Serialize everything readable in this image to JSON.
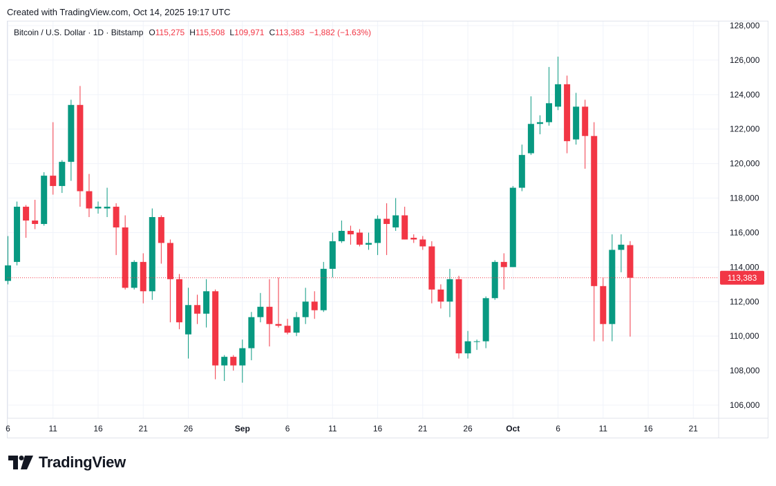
{
  "header": {
    "created_text": "Created with TradingView.com, Oct 14, 2025 19:17 UTC"
  },
  "legend": {
    "symbol": "Bitcoin / U.S. Dollar · 1D · Bitstamp",
    "open_key": "O",
    "open": "115,275",
    "high_key": "H",
    "high": "115,508",
    "low_key": "L",
    "low": "109,971",
    "close_key": "C",
    "close": "113,383",
    "change": "−1,882 (−1.63%)"
  },
  "brand": {
    "logo_text": "TradingView"
  },
  "colors": {
    "up": "#089981",
    "down": "#f23645",
    "grid": "#f0f3fa",
    "text": "#131722"
  },
  "chart_data": {
    "type": "candlestick",
    "title": "Bitcoin / U.S. Dollar · 1D · Bitstamp",
    "y_ticks": [
      106000,
      108000,
      110000,
      112000,
      114000,
      116000,
      118000,
      120000,
      122000,
      124000,
      126000,
      128000
    ],
    "y_tick_labels": [
      "106,000",
      "108,000",
      "110,000",
      "112,000",
      "114,000",
      "116,000",
      "118,000",
      "120,000",
      "122,000",
      "124,000",
      "126,000",
      "128,000"
    ],
    "ylim": [
      104800,
      128800
    ],
    "x_ticks": [
      {
        "day": 0,
        "label": "6"
      },
      {
        "day": 5,
        "label": "11"
      },
      {
        "day": 10,
        "label": "16"
      },
      {
        "day": 15,
        "label": "21"
      },
      {
        "day": 20,
        "label": "26"
      },
      {
        "day": 26,
        "label": "Sep",
        "bold": true
      },
      {
        "day": 31,
        "label": "6"
      },
      {
        "day": 36,
        "label": "11"
      },
      {
        "day": 41,
        "label": "16"
      },
      {
        "day": 46,
        "label": "21"
      },
      {
        "day": 51,
        "label": "26"
      },
      {
        "day": 56,
        "label": "Oct",
        "bold": true
      },
      {
        "day": 61,
        "label": "6"
      },
      {
        "day": 66,
        "label": "11"
      },
      {
        "day": 71,
        "label": "16"
      },
      {
        "day": 76,
        "label": "21"
      }
    ],
    "last_price": 113383,
    "last_price_label": "113,383",
    "candles": [
      {
        "o": 113200,
        "h": 115800,
        "l": 113000,
        "c": 114100
      },
      {
        "o": 114300,
        "h": 117800,
        "l": 114100,
        "c": 117500
      },
      {
        "o": 117500,
        "h": 117600,
        "l": 115700,
        "c": 116700
      },
      {
        "o": 116700,
        "h": 117900,
        "l": 116200,
        "c": 116500
      },
      {
        "o": 116500,
        "h": 119500,
        "l": 116400,
        "c": 119300
      },
      {
        "o": 119300,
        "h": 122400,
        "l": 118200,
        "c": 118700
      },
      {
        "o": 118700,
        "h": 120200,
        "l": 118300,
        "c": 120100
      },
      {
        "o": 120100,
        "h": 123700,
        "l": 119000,
        "c": 123400
      },
      {
        "o": 123400,
        "h": 124500,
        "l": 117500,
        "c": 118400
      },
      {
        "o": 118400,
        "h": 119400,
        "l": 116900,
        "c": 117400
      },
      {
        "o": 117400,
        "h": 117800,
        "l": 117100,
        "c": 117500
      },
      {
        "o": 117400,
        "h": 118600,
        "l": 116900,
        "c": 117500
      },
      {
        "o": 117500,
        "h": 117700,
        "l": 114700,
        "c": 116300
      },
      {
        "o": 116300,
        "h": 117000,
        "l": 112700,
        "c": 112800
      },
      {
        "o": 112800,
        "h": 114400,
        "l": 112700,
        "c": 114300
      },
      {
        "o": 114300,
        "h": 114800,
        "l": 111900,
        "c": 112600
      },
      {
        "o": 112600,
        "h": 117400,
        "l": 112100,
        "c": 116900
      },
      {
        "o": 116900,
        "h": 117000,
        "l": 114200,
        "c": 115400
      },
      {
        "o": 115400,
        "h": 115600,
        "l": 110800,
        "c": 113300
      },
      {
        "o": 113300,
        "h": 113600,
        "l": 110400,
        "c": 110800
      },
      {
        "o": 110100,
        "h": 112800,
        "l": 108700,
        "c": 111800
      },
      {
        "o": 111800,
        "h": 112400,
        "l": 110700,
        "c": 111300
      },
      {
        "o": 111300,
        "h": 113300,
        "l": 110500,
        "c": 112600
      },
      {
        "o": 112600,
        "h": 112700,
        "l": 107500,
        "c": 108300
      },
      {
        "o": 108300,
        "h": 108900,
        "l": 107400,
        "c": 108800
      },
      {
        "o": 108800,
        "h": 108900,
        "l": 108000,
        "c": 108300
      },
      {
        "o": 108300,
        "h": 109800,
        "l": 107300,
        "c": 109300
      },
      {
        "o": 109300,
        "h": 111400,
        "l": 108600,
        "c": 111100
      },
      {
        "o": 111100,
        "h": 112500,
        "l": 110800,
        "c": 111700
      },
      {
        "o": 111700,
        "h": 113300,
        "l": 109400,
        "c": 110700
      },
      {
        "o": 110700,
        "h": 113400,
        "l": 110500,
        "c": 110600
      },
      {
        "o": 110600,
        "h": 111000,
        "l": 110100,
        "c": 110200
      },
      {
        "o": 110200,
        "h": 111400,
        "l": 110000,
        "c": 111100
      },
      {
        "o": 111100,
        "h": 112800,
        "l": 110700,
        "c": 112000
      },
      {
        "o": 112000,
        "h": 112600,
        "l": 111000,
        "c": 111500
      },
      {
        "o": 111500,
        "h": 114300,
        "l": 111400,
        "c": 113900
      },
      {
        "o": 113900,
        "h": 116000,
        "l": 113400,
        "c": 115500
      },
      {
        "o": 115500,
        "h": 116700,
        "l": 115400,
        "c": 116100
      },
      {
        "o": 116100,
        "h": 116400,
        "l": 115300,
        "c": 115900
      },
      {
        "o": 116000,
        "h": 116200,
        "l": 115200,
        "c": 115300
      },
      {
        "o": 115300,
        "h": 116000,
        "l": 115000,
        "c": 115400
      },
      {
        "o": 115400,
        "h": 117000,
        "l": 114700,
        "c": 116800
      },
      {
        "o": 116800,
        "h": 117700,
        "l": 114700,
        "c": 116500
      },
      {
        "o": 116300,
        "h": 118000,
        "l": 116100,
        "c": 117000
      },
      {
        "o": 117000,
        "h": 117500,
        "l": 115600,
        "c": 115600
      },
      {
        "o": 115700,
        "h": 115900,
        "l": 115400,
        "c": 115600
      },
      {
        "o": 115600,
        "h": 115800,
        "l": 115000,
        "c": 115200
      },
      {
        "o": 115200,
        "h": 115500,
        "l": 111900,
        "c": 112700
      },
      {
        "o": 112700,
        "h": 113000,
        "l": 111600,
        "c": 112000
      },
      {
        "o": 112000,
        "h": 113900,
        "l": 111100,
        "c": 113300
      },
      {
        "o": 113300,
        "h": 113500,
        "l": 108700,
        "c": 109000
      },
      {
        "o": 109000,
        "h": 110300,
        "l": 108700,
        "c": 109700
      },
      {
        "o": 109700,
        "h": 109800,
        "l": 109200,
        "c": 109700
      },
      {
        "o": 109700,
        "h": 112300,
        "l": 109300,
        "c": 112200
      },
      {
        "o": 112200,
        "h": 114400,
        "l": 112100,
        "c": 114300
      },
      {
        "o": 114300,
        "h": 114800,
        "l": 112700,
        "c": 114000
      },
      {
        "o": 114000,
        "h": 118700,
        "l": 114000,
        "c": 118600
      },
      {
        "o": 118600,
        "h": 121100,
        "l": 118400,
        "c": 120500
      },
      {
        "o": 120600,
        "h": 123900,
        "l": 120500,
        "c": 122300
      },
      {
        "o": 122300,
        "h": 122800,
        "l": 121700,
        "c": 122400
      },
      {
        "o": 122400,
        "h": 125600,
        "l": 122200,
        "c": 123500
      },
      {
        "o": 123300,
        "h": 126200,
        "l": 123100,
        "c": 124600
      },
      {
        "o": 124600,
        "h": 125100,
        "l": 120600,
        "c": 121300
      },
      {
        "o": 121400,
        "h": 124100,
        "l": 121100,
        "c": 123300
      },
      {
        "o": 123300,
        "h": 123700,
        "l": 119700,
        "c": 121600
      },
      {
        "o": 121600,
        "h": 122400,
        "l": 109700,
        "c": 112900
      },
      {
        "o": 112900,
        "h": 113400,
        "l": 109700,
        "c": 110700
      },
      {
        "o": 110700,
        "h": 115900,
        "l": 109700,
        "c": 115000
      },
      {
        "o": 115000,
        "h": 115900,
        "l": 113700,
        "c": 115300
      },
      {
        "o": 115275,
        "h": 115508,
        "l": 109971,
        "c": 113383
      }
    ]
  }
}
